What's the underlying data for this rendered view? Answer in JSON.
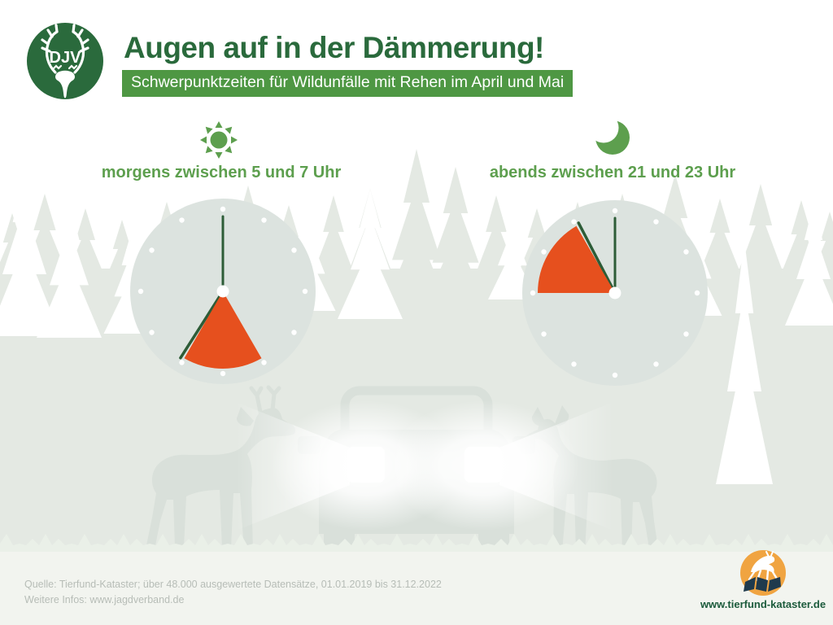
{
  "colors": {
    "brand_dark_green": "#2a6a3c",
    "bar_green": "#4e9743",
    "leaf_green": "#5d9f4e",
    "accent_orange": "#e6501e",
    "hand_green": "#2d5c37",
    "clock_face": "#dce3df",
    "forest": "#e4e9e3",
    "silhouette": "#d9e0da",
    "grass": "#eaf0e8",
    "footer_bg": "#f2f4ef",
    "footer_text": "#b7bdb7",
    "tk_orange": "#f0a441",
    "tk_navy": "#1f3a4d",
    "tk_green": "#1c5b3c"
  },
  "header": {
    "logo_text": "DJV",
    "title": "Augen auf in der Dämmerung!",
    "subtitle": "Schwerpunktzeiten für Wildunfälle mit Rehen im April und Mai"
  },
  "chart_data": {
    "type": "clock-range",
    "dial_hours": 12,
    "clocks": [
      {
        "id": "morning",
        "icon": "sun",
        "label": "morgens zwischen 5 und 7 Uhr",
        "range_start_hour": 5,
        "range_end_hour": 7
      },
      {
        "id": "evening",
        "icon": "moon",
        "label": "abends zwischen 21 und 23 Uhr",
        "range_start_hour": 21,
        "range_end_hour": 23
      }
    ]
  },
  "footer": {
    "source_line": "Quelle: Tierfund-Kataster; über 48.000 ausgewertete Datensätze, 01.01.2019 bis 31.12.2022",
    "info_line": "Weitere Infos: www.jagdverband.de",
    "website": "www.tierfund-kataster.de"
  }
}
